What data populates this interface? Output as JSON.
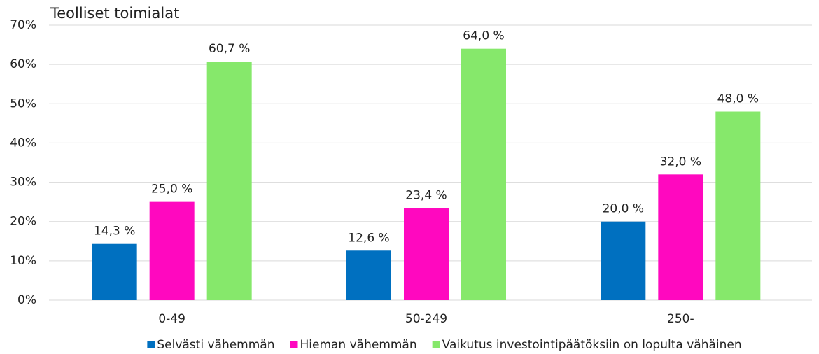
{
  "chart_data": {
    "type": "bar",
    "title": "Teolliset toimialat",
    "categories": [
      "0-49",
      "50-249",
      "250-"
    ],
    "series": [
      {
        "name": "Selvästi vähemmän",
        "color": "#0070c0",
        "values": [
          14.3,
          12.6,
          20.0
        ],
        "value_labels": [
          "14,3 %",
          "12,6 %",
          "20,0 %"
        ]
      },
      {
        "name": "Hieman vähemmän",
        "color": "#ff08bf",
        "values": [
          25.0,
          23.4,
          32.0
        ],
        "value_labels": [
          "25,0 %",
          "23,4 %",
          "32,0 %"
        ]
      },
      {
        "name": "Vaikutus investointipäätöksiin on lopulta vähäinen",
        "color": "#86e86b",
        "values": [
          60.7,
          64.0,
          48.0
        ],
        "value_labels": [
          "60,7 %",
          "64,0 %",
          "48,0 %"
        ]
      }
    ],
    "ylim": [
      0,
      70
    ],
    "yticks": [
      {
        "value": 0,
        "label": "0%"
      },
      {
        "value": 10,
        "label": "10%"
      },
      {
        "value": 20,
        "label": "20%"
      },
      {
        "value": 30,
        "label": "30%"
      },
      {
        "value": 40,
        "label": "40%"
      },
      {
        "value": 50,
        "label": "50%"
      },
      {
        "value": 60,
        "label": "60%"
      },
      {
        "value": 70,
        "label": "70%"
      }
    ],
    "grid": true,
    "legend": "bottom"
  }
}
